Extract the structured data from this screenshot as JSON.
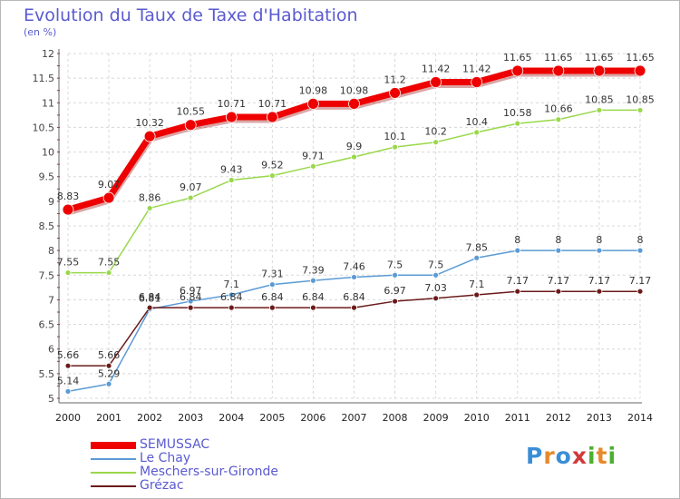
{
  "title": "Evolution du Taux de Taxe d'Habitation",
  "subtitle": "(en %)",
  "logo": {
    "text": "Proxiti"
  },
  "chart_data": {
    "type": "line",
    "title": "Evolution du Taux de Taxe d'Habitation",
    "ylabel": "(en %)",
    "xlabel": "",
    "ylim": [
      5,
      12
    ],
    "yticks": [
      5,
      5.5,
      6,
      6.5,
      7,
      7.5,
      8,
      8.5,
      9,
      9.5,
      10,
      10.5,
      11,
      11.5,
      12
    ],
    "grid": true,
    "legend_position": "bottom-left",
    "x": [
      "2000",
      "2001",
      "2002",
      "2003",
      "2004",
      "2005",
      "2006",
      "2007",
      "2008",
      "2009",
      "2010",
      "2011",
      "2012",
      "2013",
      "2014"
    ],
    "series": [
      {
        "name": "SEMUSSAC",
        "color": "#ee0000",
        "width": 7,
        "radius": 6,
        "values": [
          8.83,
          9.07,
          10.32,
          10.55,
          10.71,
          10.71,
          10.98,
          10.98,
          11.2,
          11.42,
          11.42,
          11.65,
          11.65,
          11.65,
          11.65
        ],
        "labels": [
          "8.83",
          "9.07",
          "10.32",
          "10.55",
          "10.71",
          "10.71",
          "10.98",
          "10.98",
          "11.2",
          "11.42",
          "11.42",
          "11.65",
          "11.65",
          "11.65",
          "11.65"
        ]
      },
      {
        "name": "Le Chay",
        "color": "#5b9bd5",
        "width": 1.5,
        "radius": 3,
        "values": [
          5.14,
          5.29,
          6.81,
          6.97,
          7.1,
          7.31,
          7.39,
          7.46,
          7.5,
          7.5,
          7.85,
          8,
          8,
          8,
          8
        ],
        "labels": [
          "5.14",
          "5.29",
          "6.81",
          "6.97",
          "7.1",
          "7.31",
          "7.39",
          "7.46",
          "7.5",
          "7.5",
          "7.85",
          "8",
          "8",
          "8",
          "8"
        ]
      },
      {
        "name": "Meschers-sur-Gironde",
        "color": "#99d84a",
        "width": 1.5,
        "radius": 3,
        "values": [
          7.55,
          7.55,
          8.86,
          9.07,
          9.43,
          9.52,
          9.71,
          9.9,
          10.1,
          10.2,
          10.4,
          10.58,
          10.66,
          10.85,
          10.85
        ],
        "labels": [
          "7.55",
          "7.55",
          "8.86",
          "9.07",
          "9.43",
          "9.52",
          "9.71",
          "9.9",
          "10.1",
          "10.2",
          "10.4",
          "10.58",
          "10.66",
          "10.85",
          "10.85"
        ]
      },
      {
        "name": "Grézac",
        "color": "#6b1a1a",
        "width": 1.5,
        "radius": 3,
        "values": [
          5.66,
          5.66,
          6.84,
          6.84,
          6.84,
          6.84,
          6.84,
          6.84,
          6.97,
          7.03,
          7.1,
          7.17,
          7.17,
          7.17,
          7.17
        ],
        "labels": [
          "5.66",
          "5.66",
          "6.84",
          "6.84",
          "6.84",
          "6.84",
          "6.84",
          "6.84",
          "6.97",
          "7.03",
          "7.1",
          "7.17",
          "7.17",
          "7.17",
          "7.17"
        ]
      }
    ]
  }
}
